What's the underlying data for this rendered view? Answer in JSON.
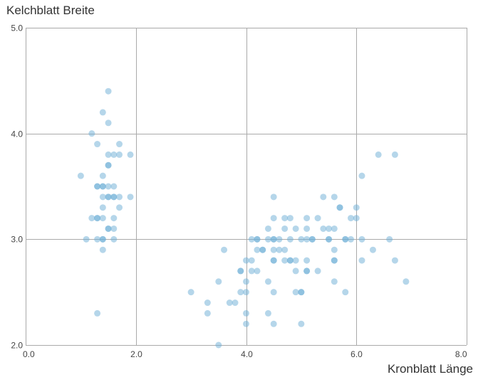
{
  "chart_data": {
    "type": "scatter",
    "xlabel": "Kronblatt Länge",
    "ylabel": "Kelchblatt Breite",
    "xlim": [
      0,
      8
    ],
    "ylim": [
      2,
      5
    ],
    "x_ticks": [
      0,
      2,
      4,
      6,
      8
    ],
    "y_ticks": [
      2,
      3,
      4,
      5
    ],
    "x_tick_labels": [
      "0.0",
      "2.0",
      "4.0",
      "6.0",
      "8.0"
    ],
    "y_tick_labels": [
      "2.0",
      "3.0",
      "4.0",
      "5.0"
    ],
    "grid": true,
    "legend": false,
    "point_color": "#6baed6",
    "point_opacity": 0.5,
    "grid_color": "#aaaaaa",
    "points": [
      [
        1.5,
        4.4
      ],
      [
        1.4,
        4.2
      ],
      [
        1.5,
        4.1
      ],
      [
        1.2,
        4.0
      ],
      [
        1.3,
        3.9
      ],
      [
        1.7,
        3.9
      ],
      [
        1.5,
        3.8
      ],
      [
        1.6,
        3.8
      ],
      [
        1.7,
        3.8
      ],
      [
        1.9,
        3.8
      ],
      [
        1.5,
        3.7
      ],
      [
        1.5,
        3.7
      ],
      [
        1.0,
        3.6
      ],
      [
        1.4,
        3.6
      ],
      [
        1.3,
        3.5
      ],
      [
        1.3,
        3.5
      ],
      [
        1.4,
        3.5
      ],
      [
        1.4,
        3.5
      ],
      [
        1.5,
        3.5
      ],
      [
        1.6,
        3.5
      ],
      [
        1.4,
        3.4
      ],
      [
        1.5,
        3.4
      ],
      [
        1.5,
        3.4
      ],
      [
        1.6,
        3.4
      ],
      [
        1.6,
        3.4
      ],
      [
        1.7,
        3.4
      ],
      [
        1.9,
        3.4
      ],
      [
        1.4,
        3.3
      ],
      [
        1.7,
        3.3
      ],
      [
        1.2,
        3.2
      ],
      [
        1.3,
        3.2
      ],
      [
        1.3,
        3.2
      ],
      [
        1.4,
        3.2
      ],
      [
        1.6,
        3.2
      ],
      [
        1.5,
        3.1
      ],
      [
        1.5,
        3.1
      ],
      [
        1.6,
        3.1
      ],
      [
        1.1,
        3.0
      ],
      [
        1.3,
        3.0
      ],
      [
        1.4,
        3.0
      ],
      [
        1.4,
        3.0
      ],
      [
        1.6,
        3.0
      ],
      [
        1.4,
        2.9
      ],
      [
        1.3,
        2.3
      ],
      [
        4.5,
        3.4
      ],
      [
        5.4,
        3.4
      ],
      [
        5.6,
        3.4
      ],
      [
        6.1,
        3.6
      ],
      [
        6.4,
        3.8
      ],
      [
        6.7,
        3.8
      ],
      [
        5.7,
        3.3
      ],
      [
        5.7,
        3.3
      ],
      [
        6.0,
        3.3
      ],
      [
        4.5,
        3.2
      ],
      [
        4.7,
        3.2
      ],
      [
        4.8,
        3.2
      ],
      [
        5.1,
        3.2
      ],
      [
        5.3,
        3.2
      ],
      [
        5.9,
        3.2
      ],
      [
        6.0,
        3.2
      ],
      [
        4.4,
        3.1
      ],
      [
        4.7,
        3.1
      ],
      [
        4.9,
        3.1
      ],
      [
        5.1,
        3.1
      ],
      [
        5.4,
        3.1
      ],
      [
        5.5,
        3.1
      ],
      [
        5.6,
        3.1
      ],
      [
        4.1,
        3.0
      ],
      [
        4.2,
        3.0
      ],
      [
        4.2,
        3.0
      ],
      [
        4.4,
        3.0
      ],
      [
        4.5,
        3.0
      ],
      [
        4.5,
        3.0
      ],
      [
        4.6,
        3.0
      ],
      [
        4.8,
        3.0
      ],
      [
        5.0,
        3.0
      ],
      [
        5.1,
        3.0
      ],
      [
        5.2,
        3.0
      ],
      [
        5.2,
        3.0
      ],
      [
        5.5,
        3.0
      ],
      [
        5.5,
        3.0
      ],
      [
        5.8,
        3.0
      ],
      [
        5.8,
        3.0
      ],
      [
        6.1,
        3.0
      ],
      [
        6.6,
        3.0
      ],
      [
        3.6,
        2.9
      ],
      [
        4.2,
        2.9
      ],
      [
        4.3,
        2.9
      ],
      [
        4.3,
        2.9
      ],
      [
        4.5,
        2.9
      ],
      [
        4.6,
        2.9
      ],
      [
        4.7,
        2.9
      ],
      [
        5.6,
        2.9
      ],
      [
        4.0,
        2.8
      ],
      [
        4.1,
        2.8
      ],
      [
        4.5,
        2.8
      ],
      [
        4.5,
        2.8
      ],
      [
        4.7,
        2.8
      ],
      [
        4.8,
        2.8
      ],
      [
        4.8,
        2.8
      ],
      [
        4.9,
        2.8
      ],
      [
        5.1,
        2.8
      ],
      [
        5.6,
        2.8
      ],
      [
        5.6,
        2.8
      ],
      [
        6.1,
        2.8
      ],
      [
        6.7,
        2.8
      ],
      [
        3.9,
        2.7
      ],
      [
        3.9,
        2.7
      ],
      [
        4.1,
        2.7
      ],
      [
        4.2,
        2.7
      ],
      [
        4.9,
        2.7
      ],
      [
        5.1,
        2.7
      ],
      [
        5.1,
        2.7
      ],
      [
        5.3,
        2.7
      ],
      [
        6.3,
        2.9
      ],
      [
        5.9,
        3.0
      ],
      [
        3.5,
        2.6
      ],
      [
        4.0,
        2.6
      ],
      [
        4.4,
        2.6
      ],
      [
        5.6,
        2.6
      ],
      [
        6.9,
        2.6
      ],
      [
        3.0,
        2.5
      ],
      [
        3.9,
        2.5
      ],
      [
        4.0,
        2.5
      ],
      [
        4.5,
        2.5
      ],
      [
        4.9,
        2.5
      ],
      [
        5.0,
        2.5
      ],
      [
        5.0,
        2.5
      ],
      [
        5.8,
        2.5
      ],
      [
        3.3,
        2.4
      ],
      [
        3.7,
        2.4
      ],
      [
        3.8,
        2.4
      ],
      [
        3.3,
        2.3
      ],
      [
        4.0,
        2.3
      ],
      [
        4.4,
        2.3
      ],
      [
        4.0,
        2.2
      ],
      [
        4.5,
        2.2
      ],
      [
        5.0,
        2.2
      ],
      [
        3.5,
        2.0
      ]
    ]
  }
}
